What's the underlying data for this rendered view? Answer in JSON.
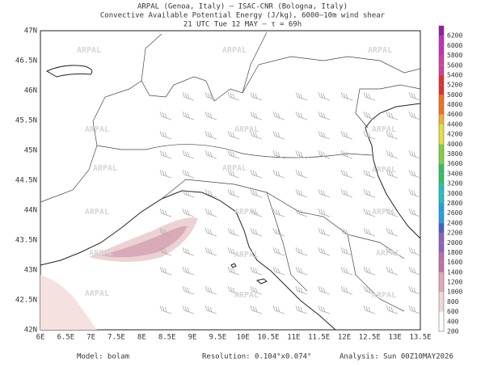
{
  "header": {
    "lines": [
      "ARPAL (Genoa, Italy)  —  ISAC-CNR (Bologna, Italy)",
      "Convective Available Potential Energy (J/kg), 6000–10m wind shear",
      "21 UTC Tue 12 MAY  —  τ = 69h"
    ]
  },
  "map": {
    "lon_labels": [
      "6E",
      "6.5E",
      "7E",
      "7.5E",
      "8E",
      "8.5E",
      "9E",
      "9.5E",
      "10E",
      "10.5E",
      "11E",
      "11.5E",
      "12E",
      "12.5E",
      "13E",
      "13.5E"
    ],
    "lat_labels": [
      "42N",
      "42.5N",
      "43N",
      "43.5N",
      "44N",
      "44.5N",
      "45N",
      "45.5N",
      "46N",
      "46.5N",
      "47N"
    ],
    "watermark": "ARPAL"
  },
  "colorbar": {
    "labels": [
      200,
      400,
      600,
      800,
      1000,
      1200,
      1400,
      1600,
      1800,
      2000,
      2200,
      2400,
      2600,
      2800,
      3000,
      3200,
      3400,
      3600,
      3800,
      4000,
      4200,
      4400,
      4600,
      4800,
      5000,
      5200,
      5400,
      5600,
      5800,
      6000,
      6200
    ]
  },
  "footer": {
    "model": "Model: bolam",
    "resolution": "Resolution: 0.104°x0.074°",
    "analysis": "Analysis: Sun 00Z10MAY2026"
  }
}
